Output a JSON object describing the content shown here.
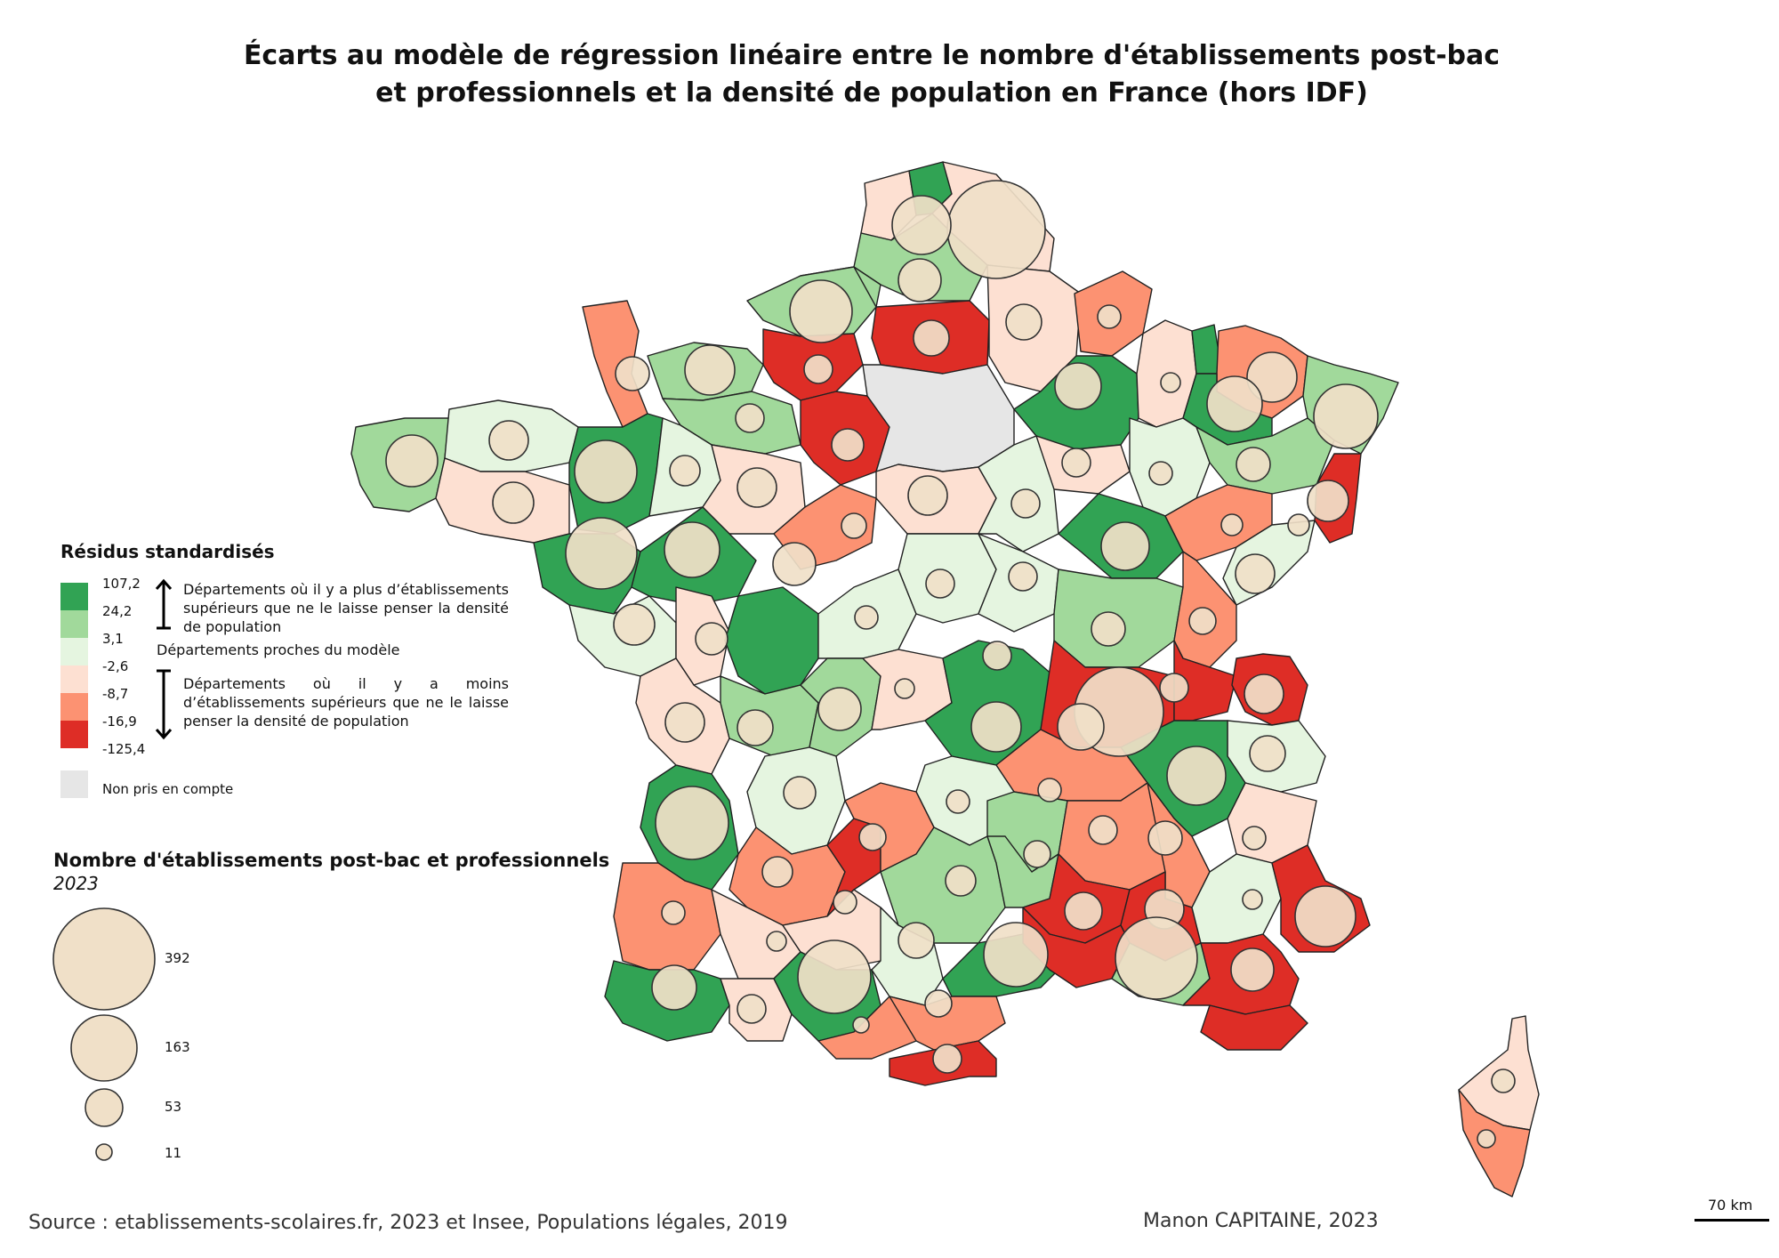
{
  "title": {
    "line1": "Écarts au modèle de régression linéaire entre le nombre d'établissements post-bac",
    "line2": "et professionnels et la densité de population en France (hors IDF)"
  },
  "legend_residuals": {
    "title": "Résidus standardisés",
    "breaks": [
      "107,2",
      "24,2",
      "3,1",
      "-2,6",
      "-8,7",
      "-16,9",
      "-125,4"
    ],
    "classes": [
      {
        "color": "#31a354"
      },
      {
        "color": "#a1d99b"
      },
      {
        "color": "#e5f5e0"
      },
      {
        "color": "#fde0d2"
      },
      {
        "color": "#fc9272"
      },
      {
        "color": "#de2d26"
      }
    ],
    "note_above": "Départements où il y a plus d’établissements supérieurs que ne le laisse penser la densité de population",
    "note_middle": "Départements proches du modèle",
    "note_below": "Départements où il y a moins d’établissements supérieurs que ne le laisse penser la densité de population",
    "not_counted_label": "Non pris en compte",
    "not_counted_color": "#e6e6e6"
  },
  "legend_circles": {
    "title": "Nombre d'établissements post-bac et professionnels",
    "subtitle": "2023",
    "values": [
      "392",
      "163",
      "53",
      "11"
    ],
    "fill": "#f0e0c8",
    "stroke": "#333333"
  },
  "footer": {
    "source": "Source : etablissements-scolaires.fr, 2023 et Insee, Populations légales, 2019",
    "author": "Manon CAPITAINE, 2023"
  },
  "scale": {
    "label": "70 km"
  }
}
